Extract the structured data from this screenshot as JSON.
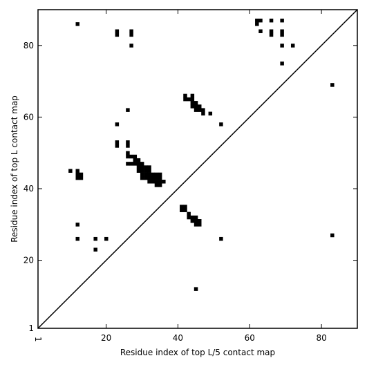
{
  "chart_data": {
    "type": "heatmap",
    "title": "",
    "xlabel": "Residue index of top L/5 contact map",
    "ylabel": "Residue index of top L contact map",
    "xlim": [
      1,
      90
    ],
    "ylim": [
      1,
      90
    ],
    "xticks": [
      1,
      20,
      40,
      60,
      80
    ],
    "yticks": [
      1,
      20,
      40,
      60,
      80
    ],
    "grid": false,
    "diagonal_line": true,
    "color": "#000000",
    "cells": [
      [
        12,
        86
      ],
      [
        23,
        84
      ],
      [
        23,
        83
      ],
      [
        27,
        84
      ],
      [
        27,
        83
      ],
      [
        27,
        80
      ],
      [
        62,
        87
      ],
      [
        63,
        87
      ],
      [
        62,
        86
      ],
      [
        66,
        87
      ],
      [
        69,
        87
      ],
      [
        63,
        84
      ],
      [
        66,
        84
      ],
      [
        66,
        83
      ],
      [
        69,
        84
      ],
      [
        69,
        83
      ],
      [
        69,
        80
      ],
      [
        72,
        80
      ],
      [
        69,
        75
      ],
      [
        83,
        69
      ],
      [
        83,
        27
      ],
      [
        26,
        62
      ],
      [
        23,
        58
      ],
      [
        52,
        58
      ],
      [
        49,
        61
      ],
      [
        42,
        66
      ],
      [
        44,
        66
      ],
      [
        42,
        65
      ],
      [
        43,
        65
      ],
      [
        44,
        65
      ],
      [
        44,
        64
      ],
      [
        45,
        64
      ],
      [
        44,
        63
      ],
      [
        45,
        63
      ],
      [
        46,
        63
      ],
      [
        45,
        62
      ],
      [
        46,
        62
      ],
      [
        47,
        62
      ],
      [
        47,
        61
      ],
      [
        23,
        53
      ],
      [
        26,
        53
      ],
      [
        23,
        52
      ],
      [
        26,
        52
      ],
      [
        26,
        50
      ],
      [
        26,
        49
      ],
      [
        27,
        49
      ],
      [
        28,
        49
      ],
      [
        26,
        47
      ],
      [
        27,
        47
      ],
      [
        28,
        47
      ],
      [
        28,
        48
      ],
      [
        29,
        48
      ],
      [
        29,
        47
      ],
      [
        30,
        47
      ],
      [
        29,
        46
      ],
      [
        30,
        46
      ],
      [
        31,
        46
      ],
      [
        32,
        46
      ],
      [
        29,
        45
      ],
      [
        30,
        45
      ],
      [
        31,
        45
      ],
      [
        32,
        45
      ],
      [
        30,
        44
      ],
      [
        31,
        44
      ],
      [
        32,
        44
      ],
      [
        33,
        44
      ],
      [
        34,
        44
      ],
      [
        35,
        44
      ],
      [
        30,
        43
      ],
      [
        31,
        43
      ],
      [
        32,
        43
      ],
      [
        33,
        43
      ],
      [
        34,
        43
      ],
      [
        35,
        43
      ],
      [
        32,
        42
      ],
      [
        33,
        42
      ],
      [
        34,
        42
      ],
      [
        35,
        42
      ],
      [
        36,
        42
      ],
      [
        34,
        41
      ],
      [
        35,
        41
      ],
      [
        10,
        45
      ],
      [
        12,
        45
      ],
      [
        12,
        44
      ],
      [
        13,
        44
      ],
      [
        12,
        43
      ],
      [
        13,
        43
      ],
      [
        41,
        35
      ],
      [
        42,
        35
      ],
      [
        41,
        34
      ],
      [
        42,
        34
      ],
      [
        43,
        33
      ],
      [
        43,
        32
      ],
      [
        44,
        32
      ],
      [
        45,
        32
      ],
      [
        44,
        31
      ],
      [
        45,
        31
      ],
      [
        46,
        31
      ],
      [
        45,
        30
      ],
      [
        46,
        30
      ],
      [
        12,
        30
      ],
      [
        12,
        26
      ],
      [
        17,
        26
      ],
      [
        20,
        26
      ],
      [
        17,
        23
      ],
      [
        52,
        26
      ],
      [
        45,
        12
      ]
    ]
  }
}
